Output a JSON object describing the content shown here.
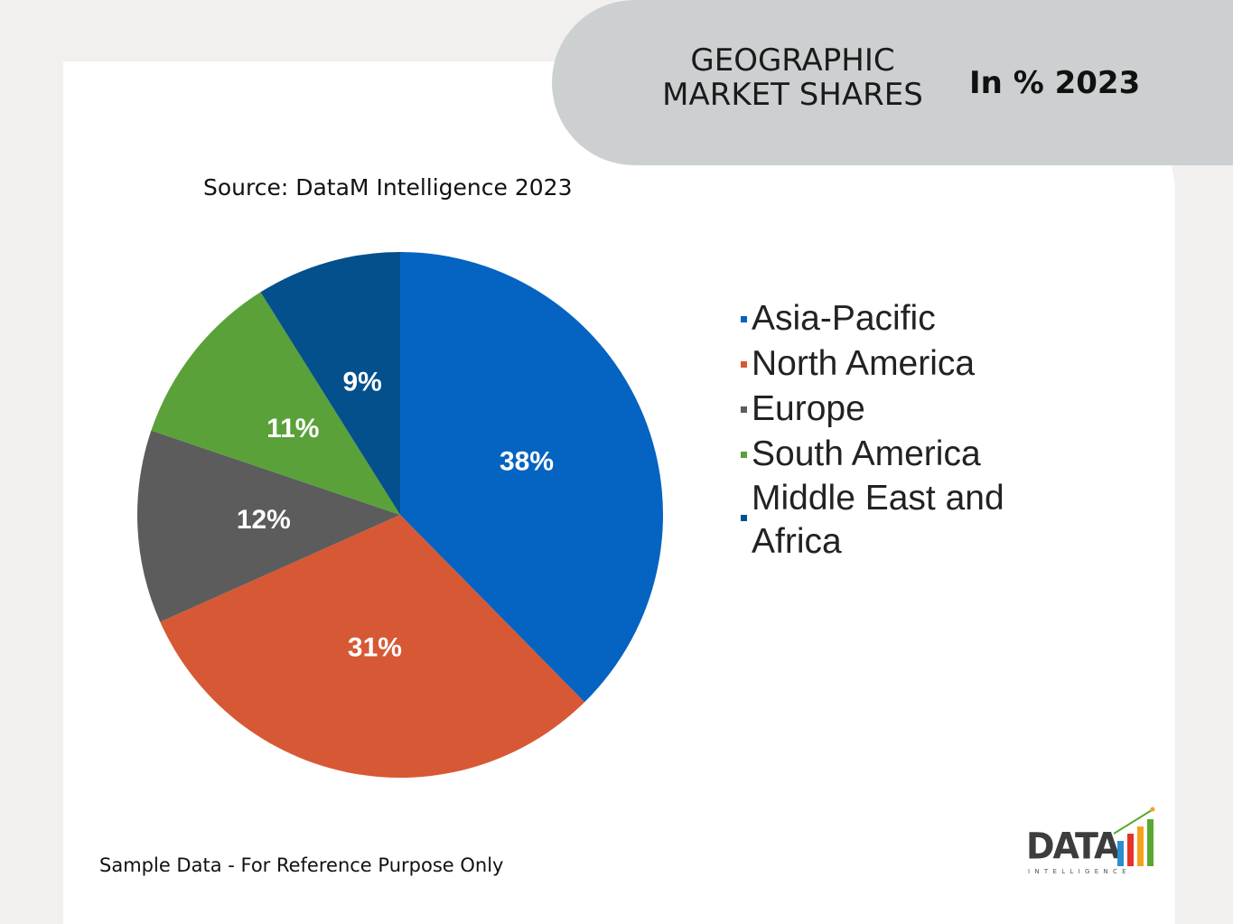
{
  "header": {
    "title_line1": "GEOGRAPHIC",
    "title_line2": "MARKET SHARES",
    "unit": "In % 2023"
  },
  "source": "Source: DataM Intelligence 2023",
  "footnote": "Sample Data - For Reference Purpose Only",
  "logo": {
    "word": "DATA",
    "sub": "INTELLIGENCE",
    "bar_colors": [
      "#2a8fd0",
      "#e6332a",
      "#f4a21d",
      "#5aa832"
    ]
  },
  "chart_data": {
    "type": "pie",
    "title": "",
    "start_angle_deg": 0,
    "direction": "clockwise",
    "categories": [
      "Asia-Pacific",
      "North America",
      "Europe",
      "South America",
      "Middle East and Africa"
    ],
    "values": [
      38,
      31,
      12,
      11,
      9
    ],
    "labels": [
      "38%",
      "31%",
      "12%",
      "11%",
      "9%"
    ],
    "colors": [
      "#0563c1",
      "#d75835",
      "#5c5c5c",
      "#5aa13a",
      "#04508d"
    ],
    "legend_position": "right"
  },
  "legend": {
    "items": [
      {
        "line1": "Asia-Pacific",
        "line2": "",
        "color": "#0563c1"
      },
      {
        "line1": "North America",
        "line2": "",
        "color": "#d75835"
      },
      {
        "line1": "Europe",
        "line2": "",
        "color": "#5c5c5c"
      },
      {
        "line1": "South America",
        "line2": "",
        "color": "#5aa13a"
      },
      {
        "line1": "Middle East and",
        "line2": "Africa",
        "color": "#04508d"
      }
    ]
  }
}
